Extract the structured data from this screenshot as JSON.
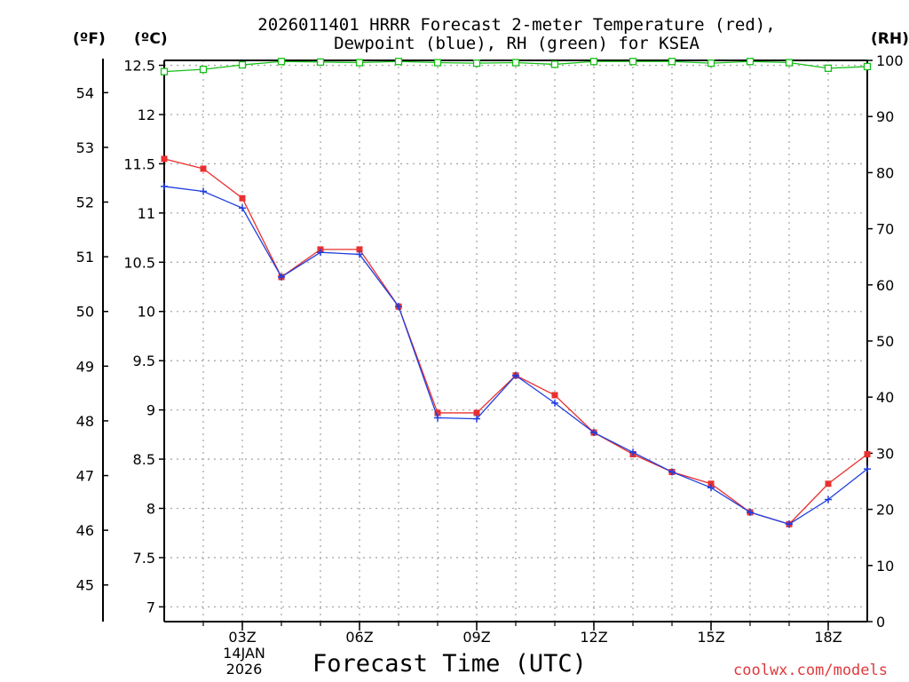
{
  "header": {
    "title_line1": "2026011401 HRRR Forecast 2-meter Temperature (red),",
    "title_line2": "Dewpoint (blue), RH (green) for KSEA",
    "unit_f": "(ºF)",
    "unit_c": "(ºC)",
    "unit_rh": "(RH)"
  },
  "footer": {
    "xlabel": "Forecast Time (UTC)",
    "credit": "coolwx.com/models",
    "date_line1": "14JAN",
    "date_line2": "2026"
  },
  "colors": {
    "temperature": "#e8302f",
    "dewpoint": "#1f3fe0",
    "rh": "#16c016",
    "grid": "#a8a8a8",
    "axis": "#000000",
    "credit": "#e0393c"
  },
  "chart_data": {
    "type": "line",
    "title": "2026011401 HRRR Forecast 2-meter Temperature (red), Dewpoint (blue), RH (green) for KSEA",
    "xlabel": "Forecast Time (UTC)",
    "x_hours": [
      1,
      2,
      3,
      4,
      5,
      6,
      7,
      8,
      9,
      10,
      11,
      12,
      13,
      14,
      15,
      16,
      17,
      18,
      19
    ],
    "xlim": [
      1,
      19
    ],
    "x_ticks": [
      {
        "hour": 3,
        "label": "03Z"
      },
      {
        "hour": 6,
        "label": "06Z"
      },
      {
        "hour": 9,
        "label": "09Z"
      },
      {
        "hour": 12,
        "label": "12Z"
      },
      {
        "hour": 15,
        "label": "15Z"
      },
      {
        "hour": 18,
        "label": "18Z"
      }
    ],
    "y_celsius": {
      "lim": [
        6.85,
        12.55
      ],
      "ticks": [
        "7",
        "7.5",
        "8",
        "8.5",
        "9",
        "9.5",
        "10",
        "10.5",
        "11",
        "11.5",
        "12",
        "12.5"
      ]
    },
    "y_fahrenheit": {
      "ticks": [
        "45",
        "46",
        "47",
        "48",
        "49",
        "50",
        "51",
        "52",
        "53",
        "54"
      ]
    },
    "y_rh": {
      "lim": [
        0,
        100
      ],
      "ticks": [
        "0",
        "10",
        "20",
        "30",
        "40",
        "50",
        "60",
        "70",
        "80",
        "90",
        "100"
      ]
    },
    "grid": true,
    "series": [
      {
        "name": "Temperature",
        "color": "#e8302f",
        "marker": "square",
        "units": "C",
        "values": [
          11.55,
          11.45,
          11.15,
          10.35,
          10.63,
          10.63,
          10.05,
          8.97,
          8.97,
          9.35,
          9.15,
          8.77,
          8.55,
          8.37,
          8.25,
          7.96,
          7.84,
          8.25,
          8.55
        ]
      },
      {
        "name": "Dewpoint",
        "color": "#1f3fe0",
        "marker": "plus",
        "units": "C",
        "values": [
          11.27,
          11.22,
          11.05,
          10.35,
          10.6,
          10.58,
          10.05,
          8.92,
          8.91,
          9.35,
          9.07,
          8.77,
          8.57,
          8.37,
          8.21,
          7.96,
          7.84,
          8.09,
          8.4
        ]
      },
      {
        "name": "RH",
        "color": "#16c016",
        "marker": "open-square",
        "units": "%",
        "values": [
          98,
          98.4,
          99.2,
          99.8,
          99.7,
          99.6,
          99.8,
          99.6,
          99.5,
          99.6,
          99.3,
          99.8,
          99.8,
          99.8,
          99.5,
          99.8,
          99.6,
          98.6,
          98.9
        ]
      }
    ]
  }
}
